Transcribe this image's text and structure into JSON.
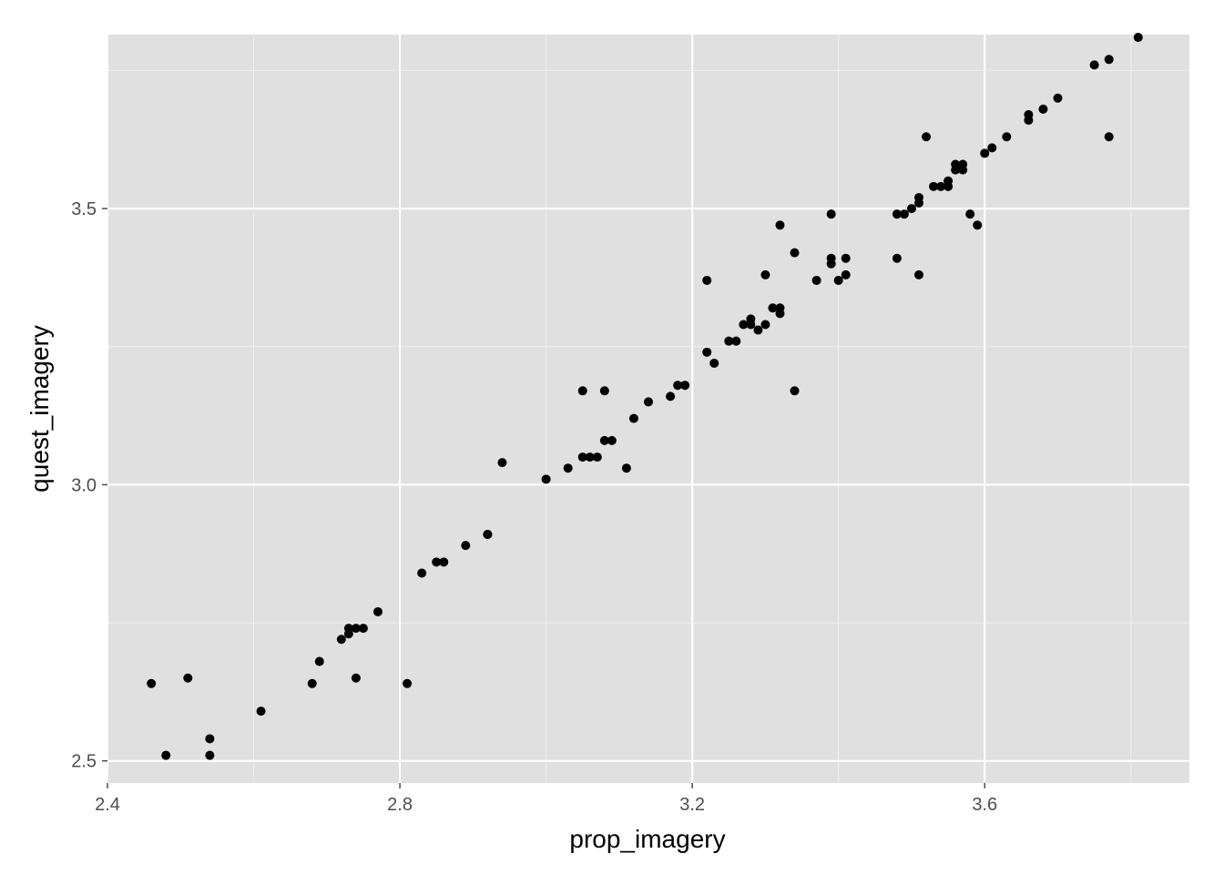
{
  "chart_data": {
    "type": "scatter",
    "xlabel": "prop_imagery",
    "ylabel": "quest_imagery",
    "xlim": [
      2.4,
      3.88
    ],
    "ylim": [
      2.46,
      3.815
    ],
    "x_ticks": [
      2.4,
      2.8,
      3.2,
      3.6
    ],
    "x_tick_labels": [
      "2.4",
      "2.8",
      "3.2",
      "3.6"
    ],
    "y_ticks": [
      2.5,
      3.0,
      3.5
    ],
    "y_tick_labels": [
      "2.5",
      "3.0",
      "3.5"
    ],
    "grid": true,
    "colors": {
      "panel": "#e0e0e0",
      "grid_major": "#ffffff",
      "grid_minor": "#f0f0f0",
      "point": "#000000"
    },
    "series": [
      {
        "points": [
          [
            2.46,
            2.64
          ],
          [
            2.48,
            2.51
          ],
          [
            2.51,
            2.65
          ],
          [
            2.54,
            2.54
          ],
          [
            2.54,
            2.51
          ],
          [
            2.61,
            2.59
          ],
          [
            2.68,
            2.64
          ],
          [
            2.69,
            2.68
          ],
          [
            2.72,
            2.72
          ],
          [
            2.73,
            2.73
          ],
          [
            2.73,
            2.74
          ],
          [
            2.74,
            2.74
          ],
          [
            2.75,
            2.74
          ],
          [
            2.74,
            2.65
          ],
          [
            2.77,
            2.77
          ],
          [
            2.81,
            2.64
          ],
          [
            2.83,
            2.84
          ],
          [
            2.85,
            2.86
          ],
          [
            2.86,
            2.86
          ],
          [
            2.89,
            2.89
          ],
          [
            2.92,
            2.91
          ],
          [
            2.92,
            2.91
          ],
          [
            2.94,
            3.04
          ],
          [
            3.0,
            3.01
          ],
          [
            3.03,
            3.03
          ],
          [
            3.05,
            3.05
          ],
          [
            3.06,
            3.05
          ],
          [
            3.07,
            3.05
          ],
          [
            3.05,
            3.17
          ],
          [
            3.08,
            3.17
          ],
          [
            3.08,
            3.08
          ],
          [
            3.09,
            3.08
          ],
          [
            3.11,
            3.03
          ],
          [
            3.12,
            3.12
          ],
          [
            3.14,
            3.15
          ],
          [
            3.17,
            3.16
          ],
          [
            3.18,
            3.18
          ],
          [
            3.19,
            3.18
          ],
          [
            3.22,
            3.24
          ],
          [
            3.23,
            3.22
          ],
          [
            3.22,
            3.37
          ],
          [
            3.25,
            3.26
          ],
          [
            3.26,
            3.26
          ],
          [
            3.27,
            3.29
          ],
          [
            3.28,
            3.3
          ],
          [
            3.28,
            3.29
          ],
          [
            3.29,
            3.28
          ],
          [
            3.3,
            3.29
          ],
          [
            3.3,
            3.38
          ],
          [
            3.31,
            3.32
          ],
          [
            3.32,
            3.31
          ],
          [
            3.32,
            3.32
          ],
          [
            3.32,
            3.47
          ],
          [
            3.34,
            3.42
          ],
          [
            3.34,
            3.17
          ],
          [
            3.37,
            3.37
          ],
          [
            3.39,
            3.49
          ],
          [
            3.39,
            3.4
          ],
          [
            3.39,
            3.41
          ],
          [
            3.4,
            3.37
          ],
          [
            3.41,
            3.38
          ],
          [
            3.41,
            3.41
          ],
          [
            3.48,
            3.49
          ],
          [
            3.49,
            3.49
          ],
          [
            3.48,
            3.41
          ],
          [
            3.5,
            3.5
          ],
          [
            3.51,
            3.51
          ],
          [
            3.51,
            3.52
          ],
          [
            3.51,
            3.38
          ],
          [
            3.52,
            3.63
          ],
          [
            3.53,
            3.54
          ],
          [
            3.54,
            3.54
          ],
          [
            3.55,
            3.55
          ],
          [
            3.55,
            3.54
          ],
          [
            3.56,
            3.57
          ],
          [
            3.56,
            3.58
          ],
          [
            3.57,
            3.57
          ],
          [
            3.57,
            3.58
          ],
          [
            3.58,
            3.49
          ],
          [
            3.59,
            3.47
          ],
          [
            3.6,
            3.6
          ],
          [
            3.61,
            3.61
          ],
          [
            3.63,
            3.63
          ],
          [
            3.66,
            3.66
          ],
          [
            3.66,
            3.67
          ],
          [
            3.68,
            3.68
          ],
          [
            3.7,
            3.7
          ],
          [
            3.75,
            3.76
          ],
          [
            3.77,
            3.77
          ],
          [
            3.77,
            3.63
          ],
          [
            3.81,
            3.81
          ]
        ]
      }
    ]
  }
}
